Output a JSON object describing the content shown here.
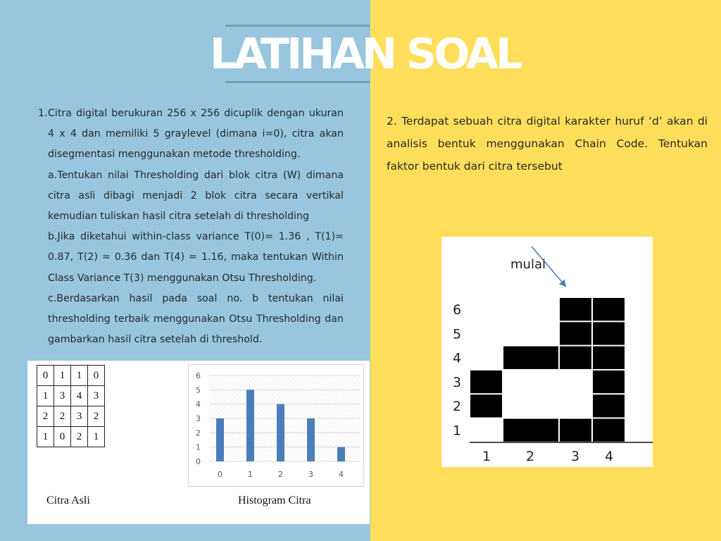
{
  "title": {
    "part1": "LATIHAN",
    "part2": "SOAL"
  },
  "question1": {
    "number": "1.",
    "intro": "Citra digital berukuran 256 x 256 dicuplik dengan ukuran 4 x 4 dan memiliki 5 graylevel (dimana i=0), citra akan disegmentasi menggunakan metode thresholding.",
    "part_a": "a.Tentukan nilai Thresholding dari blok citra (W) dimana citra asli dibagi menjadi 2 blok citra secara vertikal kemudian tuliskan hasil citra setelah di thresholding",
    "part_b": "b.Jika diketahui within-class variance T(0)= 1.36 , T(1)= 0.87, T(2) = 0.36 dan T(4) = 1.16, maka tentukan Within Class Variance T(3) menggunakan Otsu Thresholding.",
    "part_c": "c.Berdasarkan hasil pada soal no. b tentukan nilai thresholding terbaik menggunakan Otsu Thresholding dan gambarkan hasil citra setelah di threshold."
  },
  "question2": {
    "text": "2. Terdapat sebuah citra digital karakter huruf ‘d’ akan di analisis bentuk menggunakan Chain Code. Tentukan faktor bentuk dari citra tersebut"
  },
  "citra_asli": {
    "caption": "Citra Asli",
    "rows": [
      [
        "0",
        "1",
        "1",
        "0"
      ],
      [
        "1",
        "3",
        "4",
        "3"
      ],
      [
        "2",
        "2",
        "3",
        "2"
      ],
      [
        "1",
        "0",
        "2",
        "1"
      ]
    ]
  },
  "histogram": {
    "caption": "Histogram Citra",
    "bar_color": "#4a7ebb"
  },
  "chain_code": {
    "start_label": "mulai",
    "row_labels": [
      "6",
      "5",
      "4",
      "3",
      "2",
      "1"
    ],
    "col_labels": [
      "1",
      "2",
      "3",
      "4"
    ],
    "filled_cells": [
      [
        3,
        6
      ],
      [
        4,
        6
      ],
      [
        3,
        5
      ],
      [
        4,
        5
      ],
      [
        2,
        4
      ],
      [
        3,
        4
      ],
      [
        4,
        4
      ],
      [
        1,
        3
      ],
      [
        4,
        3
      ],
      [
        1,
        2
      ],
      [
        4,
        2
      ],
      [
        2,
        1
      ],
      [
        3,
        1
      ],
      [
        4,
        1
      ]
    ],
    "arrow_color": "#4a7ebb"
  },
  "chart_data": {
    "type": "bar",
    "categories": [
      "0",
      "1",
      "2",
      "3",
      "4"
    ],
    "values": [
      3,
      5,
      4,
      3,
      1
    ],
    "title": "",
    "xlabel": "",
    "ylabel": "",
    "ylim": [
      0,
      6
    ],
    "yticks": [
      "0",
      "1",
      "2",
      "3",
      "4",
      "5",
      "6"
    ],
    "grid": true
  }
}
